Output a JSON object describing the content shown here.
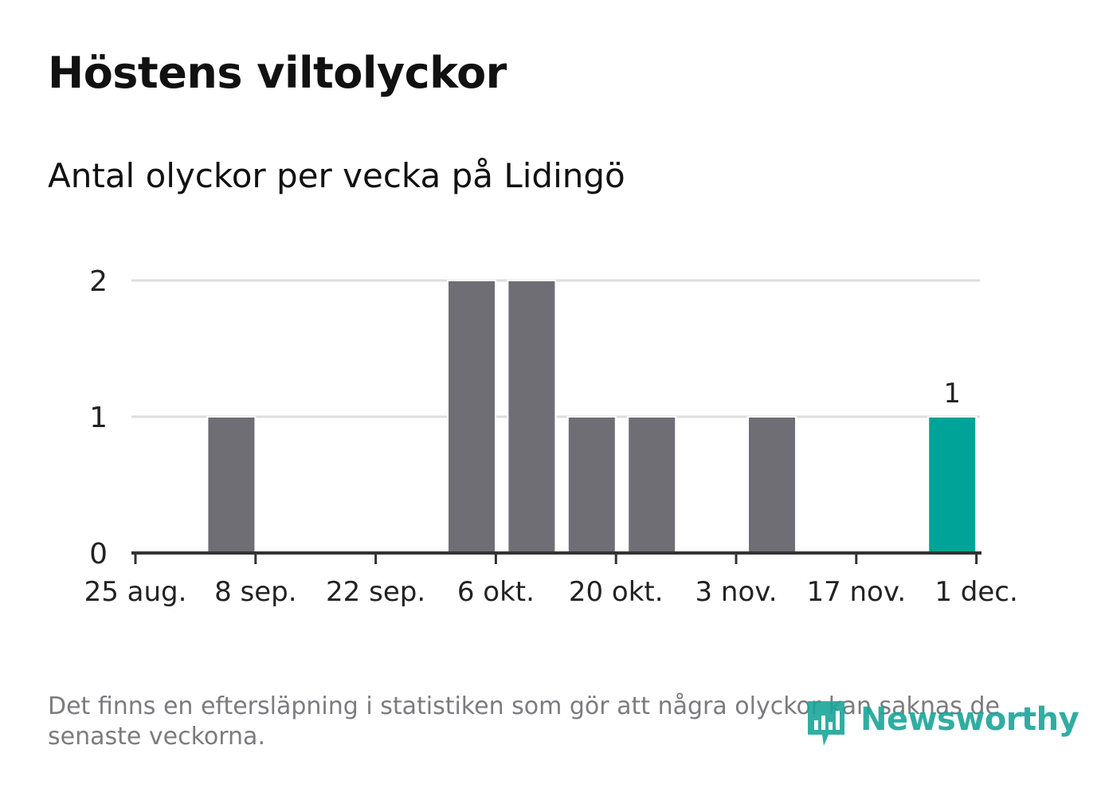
{
  "title": "Höstens viltolyckor",
  "subtitle": "Antal olyckor per vecka på Lidingö",
  "footnote": "Det finns en eftersläpning i statistiken som gör att några olyckor kan saknas de senaste veckorna.",
  "brand": "Newsworthy",
  "colors": {
    "bar": "#6f6e74",
    "highlight": "#00a398",
    "grid": "#dddddd",
    "axis": "#333333",
    "brand": "#1aa599"
  },
  "chart_data": {
    "type": "bar",
    "x_start": "2024-08-25",
    "categories": [
      "2024-08-25",
      "2024-09-01",
      "2024-09-08",
      "2024-09-15",
      "2024-09-22",
      "2024-09-29",
      "2024-10-06",
      "2024-10-13",
      "2024-10-20",
      "2024-10-27",
      "2024-11-03",
      "2024-11-10",
      "2024-11-17",
      "2024-11-24"
    ],
    "values": [
      0,
      1,
      0,
      0,
      0,
      2,
      2,
      1,
      1,
      0,
      1,
      0,
      0,
      1
    ],
    "highlight_index": 13,
    "highlight_label": "1",
    "ylim": [
      0,
      2
    ],
    "yticks": [
      "0",
      "1",
      "2"
    ],
    "xtick_labels": [
      "25 aug.",
      "8 sep.",
      "22 sep.",
      "6 okt.",
      "20 okt.",
      "3 nov.",
      "17 nov.",
      "1 dec."
    ],
    "xlabel": "",
    "ylabel": "",
    "grid": true,
    "legend": "none"
  }
}
